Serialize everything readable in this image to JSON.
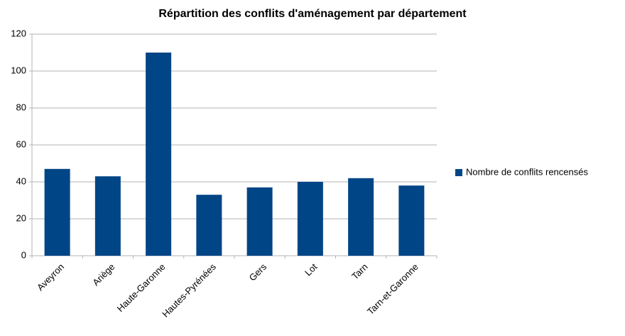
{
  "chart_data": {
    "type": "bar",
    "title": "Répartition des conflits d'aménagement par département",
    "categories": [
      "Aveyron",
      "Ariège",
      "Haute-Garonne",
      "Hautes-Pyrénées",
      "Gers",
      "Lot",
      "Tarn",
      "Tarn-et-Garonne"
    ],
    "series": [
      {
        "name": "Nombre de conflits rencensés",
        "color": "#004586",
        "values": [
          47,
          43,
          110,
          33,
          37,
          40,
          42,
          38
        ]
      }
    ],
    "ylim": [
      0,
      120
    ],
    "yticks": [
      0,
      20,
      40,
      60,
      80,
      100,
      120
    ],
    "grid": true,
    "legend": "right"
  }
}
